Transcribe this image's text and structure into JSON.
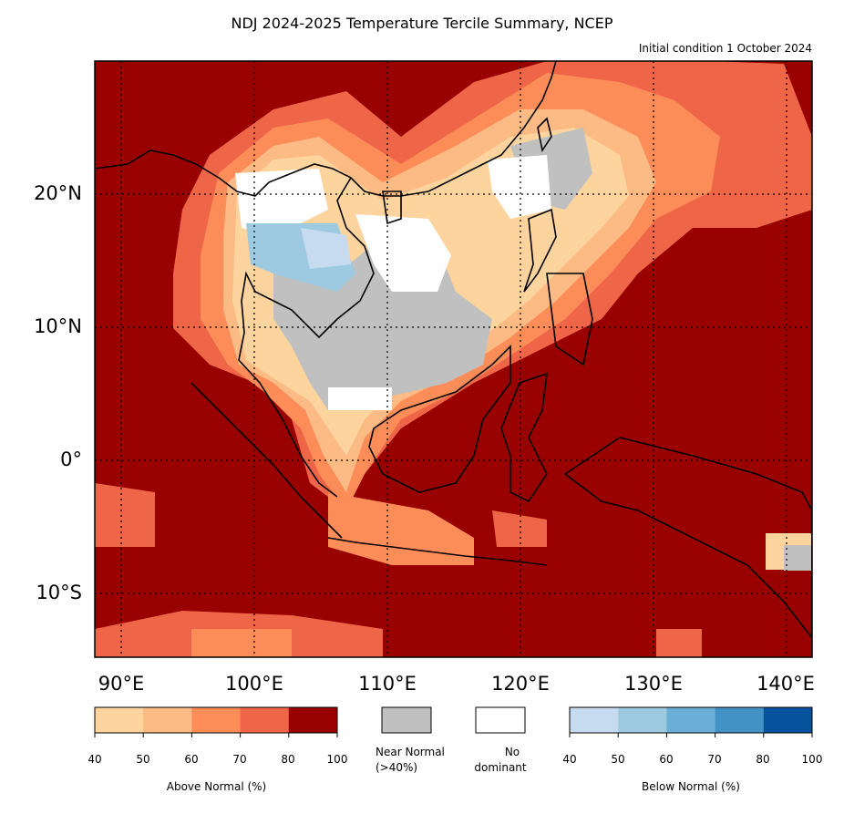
{
  "title": "NDJ 2024-2025 Temperature Tercile Summary, NCEP",
  "subtitle": "Initial condition 1 October 2024",
  "map": {
    "lat_labels": [
      "20°N",
      "10°N",
      "0°",
      "10°S"
    ],
    "lon_labels": [
      "90°E",
      "100°E",
      "110°E",
      "120°E",
      "130°E",
      "140°E"
    ]
  },
  "legend": {
    "above": {
      "label": "Above Normal (%)",
      "ticks": [
        "40",
        "50",
        "60",
        "70",
        "80",
        "100"
      ],
      "colors": [
        "#fdd49e",
        "#fcba84",
        "#fc8d59",
        "#ef6548",
        "#990000"
      ]
    },
    "near_normal": {
      "label_line1": "Near Normal",
      "label_line2": "(>40%)",
      "color": "#c0c0c0"
    },
    "no_dominant": {
      "label_line1": "No",
      "label_line2": "dominant",
      "color": "#ffffff"
    },
    "below": {
      "label": "Below Normal (%)",
      "ticks": [
        "40",
        "50",
        "60",
        "70",
        "80",
        "100"
      ],
      "colors": [
        "#c6dbef",
        "#9ecae1",
        "#6baed6",
        "#4292c6",
        "#08519c"
      ]
    }
  }
}
